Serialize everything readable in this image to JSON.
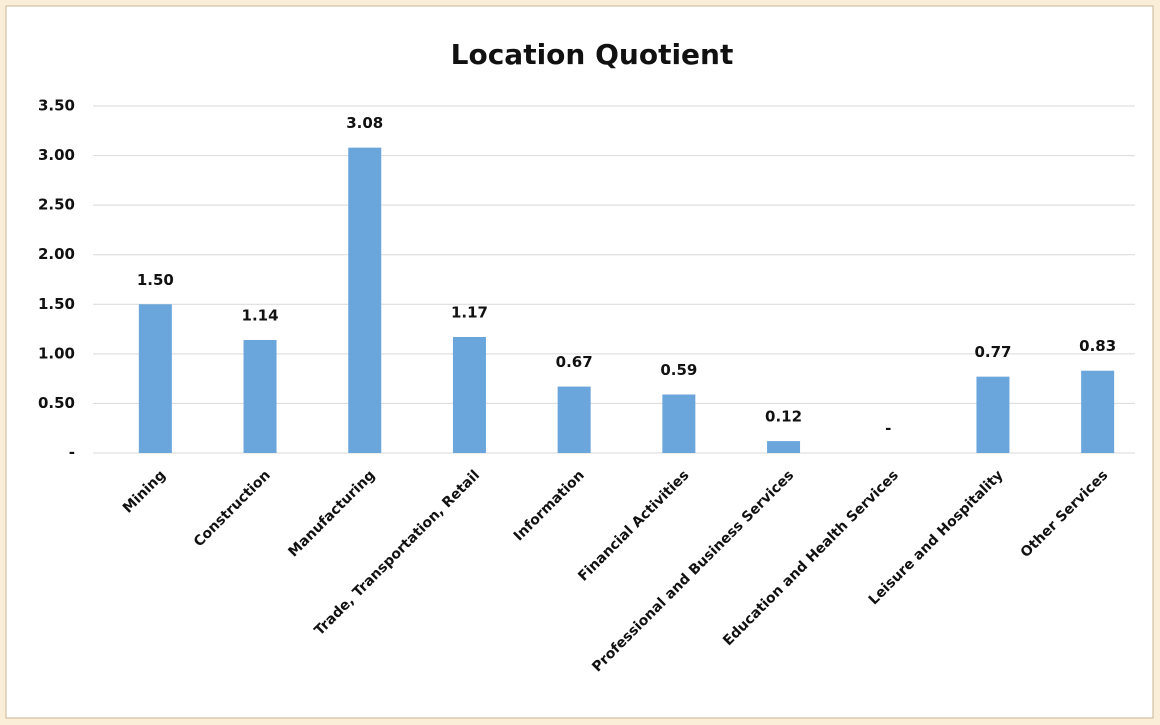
{
  "chart_data": {
    "type": "bar",
    "title": "Location Quotient",
    "categories": [
      "Mining",
      "Construction",
      "Manufacturing",
      "Trade, Transportation, Retail",
      "Information",
      "Financial Activities",
      "Professional and Business Services",
      "Education and Health Services",
      "Leisure and Hospitality",
      "Other Services"
    ],
    "values": [
      1.5,
      1.14,
      3.08,
      1.17,
      0.67,
      0.59,
      0.12,
      0,
      0.77,
      0.83
    ],
    "value_labels": [
      "1.50",
      "1.14",
      "3.08",
      "1.17",
      "0.67",
      "0.59",
      "0.12",
      "-",
      "0.77",
      "0.83"
    ],
    "color": "#6aa6dc",
    "ylim": [
      0,
      3.5
    ],
    "yticks": [
      {
        "value": 0,
        "label": "-"
      },
      {
        "value": 0.5,
        "label": "0.50"
      },
      {
        "value": 1,
        "label": "1.00"
      },
      {
        "value": 1.5,
        "label": "1.50"
      },
      {
        "value": 2,
        "label": "2.00"
      },
      {
        "value": 2.5,
        "label": "2.50"
      },
      {
        "value": 3,
        "label": "3.00"
      },
      {
        "value": 3.5,
        "label": "3.50"
      }
    ],
    "grid": true
  }
}
